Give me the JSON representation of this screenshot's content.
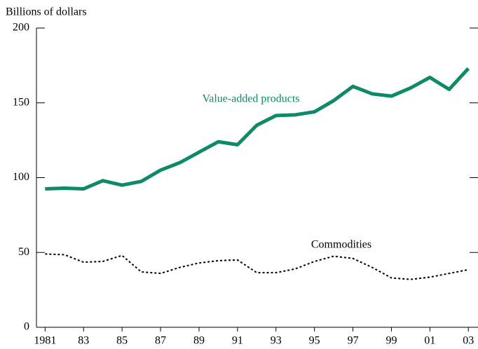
{
  "chart_data": {
    "type": "line",
    "y_axis_label": "Billions of dollars",
    "x": [
      1981,
      1982,
      1983,
      1984,
      1985,
      1986,
      1987,
      1988,
      1989,
      1990,
      1991,
      1992,
      1993,
      1994,
      1995,
      1996,
      1997,
      1998,
      1999,
      2000,
      2001,
      2002,
      2003
    ],
    "series": [
      {
        "name": "Value-added products",
        "color": "#0e8a6a",
        "style": "solid",
        "values": [
          92.5,
          93,
          92.5,
          98,
          95,
          97.5,
          105,
          110,
          117,
          124,
          122,
          135,
          141.5,
          142,
          144,
          151.5,
          161,
          156,
          154.5,
          160,
          167,
          159,
          173
        ]
      },
      {
        "name": "Commodities",
        "color": "#000000",
        "style": "dotted",
        "values": [
          49,
          48.5,
          43.5,
          44,
          48,
          37,
          36,
          40,
          43,
          44.5,
          45,
          36.5,
          36.5,
          39,
          44,
          47.5,
          46,
          40,
          33,
          32,
          33.5,
          36,
          38.5
        ]
      }
    ],
    "xlim": [
      1980.55,
      2003.5
    ],
    "xticks": [
      {
        "value": 1981,
        "label": "1981"
      },
      {
        "value": 1983,
        "label": "83"
      },
      {
        "value": 1985,
        "label": "85"
      },
      {
        "value": 1987,
        "label": "87"
      },
      {
        "value": 1989,
        "label": "89"
      },
      {
        "value": 1991,
        "label": "91"
      },
      {
        "value": 1993,
        "label": "93"
      },
      {
        "value": 1995,
        "label": "95"
      },
      {
        "value": 1997,
        "label": "97"
      },
      {
        "value": 1999,
        "label": "99"
      },
      {
        "value": 2001,
        "label": "01"
      },
      {
        "value": 2003,
        "label": "03"
      }
    ],
    "ylim": [
      0,
      200
    ],
    "yticks": [
      0,
      50,
      100,
      150,
      200
    ]
  }
}
